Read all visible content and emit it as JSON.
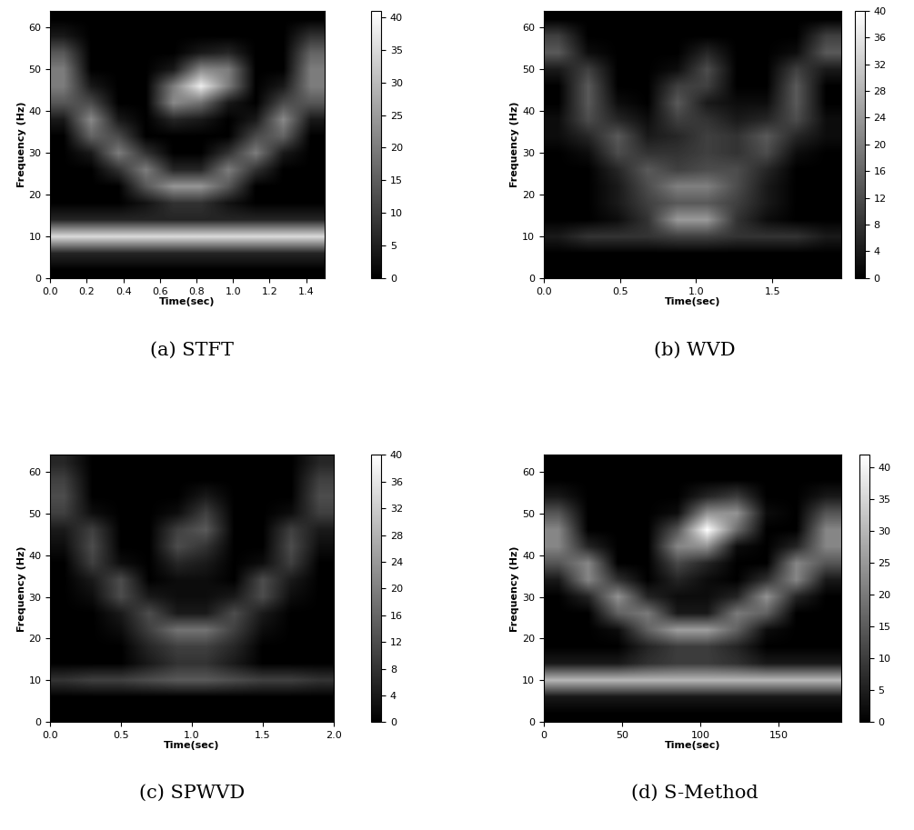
{
  "chart_data": [
    {
      "type": "heatmap",
      "title": "(a) STFT",
      "xlabel": "Time(sec)",
      "ylabel": "Frequency (Hz)",
      "xlim": [
        0,
        1.5
      ],
      "ylim": [
        0,
        64
      ],
      "xticks": [
        {
          "value": 0,
          "label": "0.0"
        },
        {
          "value": 0.2,
          "label": "0.2"
        },
        {
          "value": 0.4,
          "label": "0.4"
        },
        {
          "value": 0.6,
          "label": "0.6"
        },
        {
          "value": 0.8,
          "label": "0.8"
        },
        {
          "value": 1.0,
          "label": "1.0"
        },
        {
          "value": 1.2,
          "label": "1.2"
        },
        {
          "value": 1.4,
          "label": "1.4"
        }
      ],
      "yticks": [
        0,
        10,
        20,
        30,
        40,
        50,
        60
      ],
      "colorbar_range": [
        0,
        41
      ],
      "colorbar_ticks": [
        0,
        5,
        10,
        15,
        20,
        25,
        30,
        35,
        40
      ],
      "cells": [
        [
          0,
          0,
          0,
          0,
          0,
          0,
          0,
          0,
          0,
          0
        ],
        [
          6,
          6,
          6,
          6,
          6,
          6,
          6,
          6,
          6,
          6
        ],
        [
          35,
          35,
          35,
          35,
          35,
          35,
          35,
          35,
          35,
          35
        ],
        [
          6,
          6,
          6,
          6,
          6,
          6,
          6,
          6,
          6,
          6
        ],
        [
          0,
          0,
          0,
          3,
          8,
          8,
          3,
          0,
          0,
          0
        ],
        [
          0,
          0,
          0,
          14,
          24,
          24,
          14,
          0,
          0,
          0
        ],
        [
          0,
          0,
          8,
          20,
          6,
          6,
          20,
          8,
          0,
          0
        ],
        [
          0,
          4,
          20,
          8,
          0,
          0,
          8,
          20,
          4,
          0
        ],
        [
          0,
          16,
          12,
          0,
          0,
          0,
          0,
          12,
          16,
          0
        ],
        [
          4,
          22,
          4,
          0,
          6,
          4,
          0,
          4,
          22,
          4
        ],
        [
          14,
          12,
          0,
          0,
          22,
          18,
          4,
          0,
          12,
          14
        ],
        [
          20,
          4,
          0,
          0,
          20,
          38,
          20,
          0,
          4,
          20
        ],
        [
          20,
          0,
          0,
          0,
          4,
          22,
          20,
          0,
          0,
          20
        ],
        [
          14,
          0,
          0,
          0,
          0,
          4,
          6,
          0,
          0,
          16
        ],
        [
          4,
          0,
          0,
          0,
          0,
          0,
          0,
          0,
          0,
          8
        ],
        [
          0,
          0,
          0,
          0,
          0,
          0,
          0,
          0,
          0,
          0
        ]
      ]
    },
    {
      "type": "heatmap",
      "title": "(b) WVD",
      "xlabel": "Time(sec)",
      "ylabel": "Frequency (Hz)",
      "xlim": [
        0,
        1.95
      ],
      "ylim": [
        0,
        64
      ],
      "xticks": [
        {
          "value": 0,
          "label": "0.0"
        },
        {
          "value": 0.5,
          "label": "0.5"
        },
        {
          "value": 1.0,
          "label": "1.0"
        },
        {
          "value": 1.5,
          "label": "1.5"
        }
      ],
      "yticks": [
        0,
        10,
        20,
        30,
        40,
        50,
        60
      ],
      "colorbar_range": [
        0,
        40
      ],
      "colorbar_ticks": [
        0,
        4,
        8,
        12,
        16,
        20,
        24,
        28,
        32,
        36,
        40
      ],
      "cells": [
        [
          0,
          0,
          0,
          0,
          0,
          0,
          0,
          0,
          0,
          0
        ],
        [
          0,
          0,
          0,
          0,
          0,
          0,
          0,
          0,
          0,
          0
        ],
        [
          4,
          8,
          8,
          8,
          10,
          10,
          8,
          8,
          8,
          4
        ],
        [
          0,
          0,
          2,
          8,
          24,
          24,
          8,
          2,
          0,
          0
        ],
        [
          0,
          0,
          4,
          10,
          14,
          14,
          10,
          4,
          0,
          0
        ],
        [
          0,
          0,
          4,
          12,
          20,
          20,
          12,
          4,
          0,
          0
        ],
        [
          0,
          0,
          6,
          14,
          10,
          12,
          12,
          6,
          0,
          0
        ],
        [
          0,
          2,
          12,
          8,
          8,
          10,
          8,
          12,
          2,
          0
        ],
        [
          2,
          6,
          14,
          4,
          6,
          10,
          8,
          14,
          6,
          2
        ],
        [
          2,
          12,
          6,
          2,
          10,
          8,
          4,
          6,
          12,
          2
        ],
        [
          0,
          14,
          2,
          0,
          14,
          4,
          2,
          2,
          14,
          0
        ],
        [
          0,
          14,
          0,
          0,
          10,
          10,
          0,
          0,
          14,
          0
        ],
        [
          4,
          10,
          0,
          0,
          2,
          12,
          0,
          0,
          10,
          4
        ],
        [
          14,
          2,
          0,
          0,
          0,
          6,
          0,
          0,
          2,
          14
        ],
        [
          10,
          0,
          0,
          0,
          0,
          0,
          0,
          0,
          0,
          10
        ],
        [
          0,
          0,
          0,
          0,
          0,
          0,
          0,
          0,
          0,
          0
        ]
      ]
    },
    {
      "type": "heatmap",
      "title": "(c) SPWVD",
      "xlabel": "Time(sec)",
      "ylabel": "Frequency (Hz)",
      "xlim": [
        0,
        2.0
      ],
      "ylim": [
        0,
        64
      ],
      "xticks": [
        {
          "value": 0,
          "label": "0.0"
        },
        {
          "value": 0.5,
          "label": "0.5"
        },
        {
          "value": 1.0,
          "label": "1.0"
        },
        {
          "value": 1.5,
          "label": "1.5"
        },
        {
          "value": 2.0,
          "label": "2.0"
        }
      ],
      "yticks": [
        0,
        10,
        20,
        30,
        40,
        50,
        60
      ],
      "colorbar_range": [
        0,
        40
      ],
      "colorbar_ticks": [
        0,
        4,
        8,
        12,
        16,
        20,
        24,
        28,
        32,
        36,
        40
      ],
      "cells": [
        [
          0,
          0,
          0,
          0,
          0,
          0,
          0,
          0,
          0,
          0
        ],
        [
          0,
          0,
          0,
          0,
          0,
          0,
          0,
          0,
          0,
          0
        ],
        [
          8,
          10,
          10,
          12,
          14,
          14,
          12,
          10,
          10,
          8
        ],
        [
          0,
          0,
          0,
          4,
          8,
          8,
          4,
          0,
          0,
          0
        ],
        [
          0,
          0,
          0,
          6,
          10,
          10,
          6,
          0,
          0,
          0
        ],
        [
          0,
          0,
          2,
          10,
          18,
          18,
          10,
          2,
          0,
          0
        ],
        [
          0,
          0,
          4,
          12,
          4,
          4,
          12,
          4,
          0,
          0
        ],
        [
          0,
          2,
          12,
          4,
          2,
          2,
          4,
          12,
          2,
          0
        ],
        [
          0,
          4,
          12,
          0,
          2,
          2,
          0,
          12,
          4,
          0
        ],
        [
          0,
          10,
          2,
          0,
          6,
          4,
          0,
          2,
          10,
          0
        ],
        [
          2,
          12,
          0,
          0,
          12,
          8,
          0,
          0,
          12,
          2
        ],
        [
          4,
          10,
          0,
          0,
          10,
          14,
          0,
          0,
          10,
          4
        ],
        [
          10,
          2,
          0,
          0,
          2,
          10,
          0,
          0,
          2,
          10
        ],
        [
          12,
          0,
          0,
          0,
          0,
          4,
          0,
          0,
          0,
          12
        ],
        [
          10,
          0,
          0,
          0,
          0,
          0,
          0,
          0,
          0,
          10
        ],
        [
          6,
          0,
          0,
          0,
          0,
          0,
          0,
          0,
          0,
          6
        ]
      ]
    },
    {
      "type": "heatmap",
      "title": "(d) S-Method",
      "xlabel": "Time(sec)",
      "ylabel": "Frequency (Hz)",
      "xlim": [
        0,
        190
      ],
      "ylim": [
        0,
        64
      ],
      "xticks": [
        0,
        50,
        100,
        150
      ],
      "yticks": [
        0,
        10,
        20,
        30,
        40,
        50,
        60
      ],
      "colorbar_range": [
        0,
        42
      ],
      "colorbar_ticks": [
        0,
        5,
        10,
        15,
        20,
        25,
        30,
        35,
        40
      ],
      "cells": [
        [
          0,
          0,
          0,
          0,
          0,
          0,
          0,
          0,
          0,
          0
        ],
        [
          4,
          4,
          4,
          4,
          4,
          4,
          4,
          4,
          4,
          4
        ],
        [
          30,
          30,
          30,
          30,
          30,
          30,
          30,
          30,
          30,
          30
        ],
        [
          4,
          4,
          4,
          8,
          10,
          10,
          8,
          4,
          4,
          4
        ],
        [
          0,
          0,
          0,
          6,
          10,
          10,
          6,
          0,
          0,
          0
        ],
        [
          0,
          0,
          2,
          16,
          26,
          26,
          16,
          2,
          0,
          0
        ],
        [
          0,
          0,
          16,
          20,
          4,
          4,
          20,
          16,
          0,
          0
        ],
        [
          0,
          6,
          24,
          6,
          2,
          2,
          6,
          24,
          6,
          0
        ],
        [
          4,
          22,
          8,
          0,
          6,
          2,
          0,
          8,
          22,
          4
        ],
        [
          14,
          22,
          0,
          0,
          12,
          6,
          0,
          0,
          22,
          14
        ],
        [
          22,
          6,
          0,
          0,
          22,
          24,
          2,
          0,
          6,
          22
        ],
        [
          22,
          0,
          0,
          0,
          14,
          42,
          18,
          0,
          0,
          22
        ],
        [
          14,
          0,
          0,
          0,
          2,
          24,
          24,
          2,
          0,
          14
        ],
        [
          4,
          0,
          0,
          0,
          0,
          6,
          10,
          0,
          0,
          4
        ],
        [
          0,
          0,
          0,
          0,
          0,
          0,
          0,
          0,
          0,
          0
        ],
        [
          0,
          0,
          0,
          0,
          0,
          0,
          0,
          0,
          0,
          0
        ]
      ]
    }
  ]
}
